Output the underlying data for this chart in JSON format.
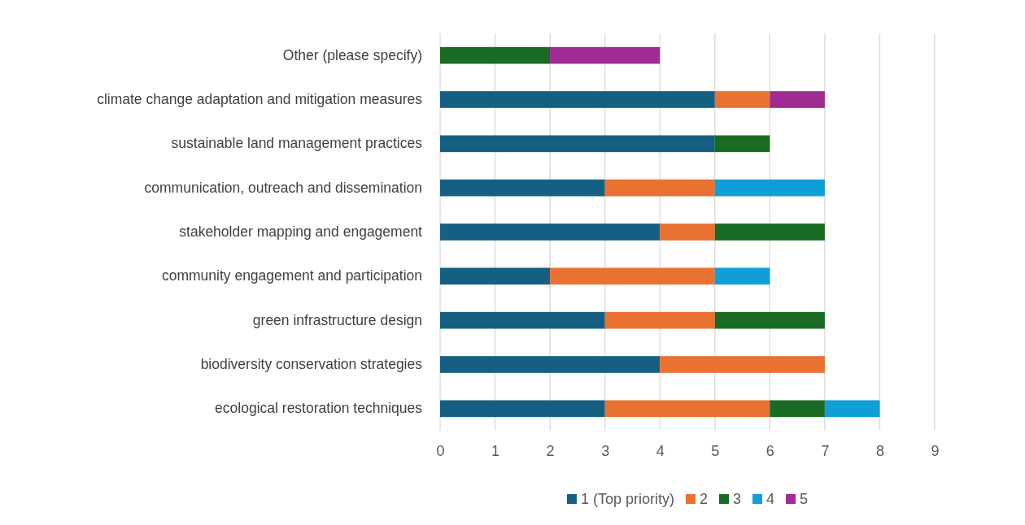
{
  "chart_data": {
    "type": "bar",
    "orientation": "horizontal",
    "stacked": true,
    "categories": [
      "Other (please specify)",
      "climate change adaptation and mitigation measures",
      "sustainable land management practices",
      "communication, outreach and dissemination",
      "stakeholder mapping and engagement",
      "community engagement and participation",
      "green infrastructure design",
      "biodiversity conservation strategies",
      "ecological restoration techniques"
    ],
    "series": [
      {
        "name": "1 (Top priority)",
        "color": "#156082",
        "values": [
          null,
          5,
          5,
          3,
          4,
          2,
          3,
          4,
          3
        ]
      },
      {
        "name": "2",
        "color": "#e97132",
        "values": [
          null,
          1,
          null,
          2,
          1,
          3,
          2,
          3,
          3
        ]
      },
      {
        "name": "3",
        "color": "#196b24",
        "values": [
          2,
          null,
          1,
          null,
          2,
          null,
          2,
          null,
          1
        ]
      },
      {
        "name": "4",
        "color": "#0f9ed5",
        "values": [
          null,
          null,
          null,
          2,
          null,
          1,
          null,
          null,
          1
        ]
      },
      {
        "name": "5",
        "color": "#a02b93",
        "values": [
          2,
          1,
          null,
          null,
          null,
          null,
          null,
          null,
          null
        ]
      }
    ],
    "xlim": [
      0,
      9
    ],
    "xticks": [
      0,
      1,
      2,
      3,
      4,
      5,
      6,
      7,
      8,
      9
    ],
    "grid": "x",
    "legend": "bottom"
  }
}
